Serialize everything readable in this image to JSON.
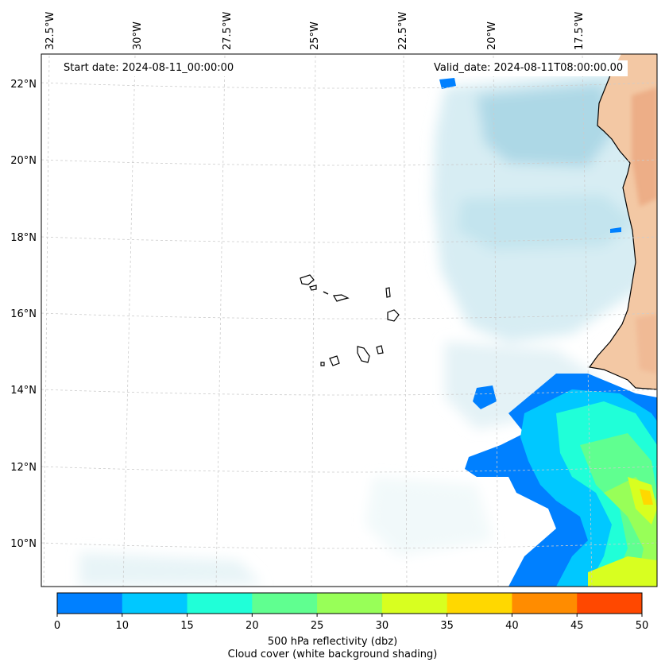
{
  "start_date": "Start date: 2024-08-11_00:00:00",
  "valid_date": "Valid_date: 2024-08-11T08:00:00.00",
  "lon_labels": [
    "32.5°W",
    "30°W",
    "27.5°W",
    "25°W",
    "22.5°W",
    "20°W",
    "17.5°W"
  ],
  "lat_labels": [
    "22°N",
    "20°N",
    "18°N",
    "16°N",
    "14°N",
    "12°N",
    "10°N"
  ],
  "colorbar": {
    "ticks": [
      "0",
      "10",
      "15",
      "20",
      "25",
      "30",
      "35",
      "40",
      "45",
      "50"
    ],
    "colors": [
      "#0080ff",
      "#00c8ff",
      "#20ffd8",
      "#60ff90",
      "#98ff58",
      "#d8ff20",
      "#ffd800",
      "#ff8c00",
      "#ff4800"
    ],
    "label_line1": "500 hPa reflectivity (dbz)",
    "label_line2": "Cloud cover (white background shading)"
  },
  "colors": {
    "land": "#f3c8a4",
    "cloud": "#b8dde8",
    "coast": "#000000",
    "grid": "#cccccc"
  }
}
